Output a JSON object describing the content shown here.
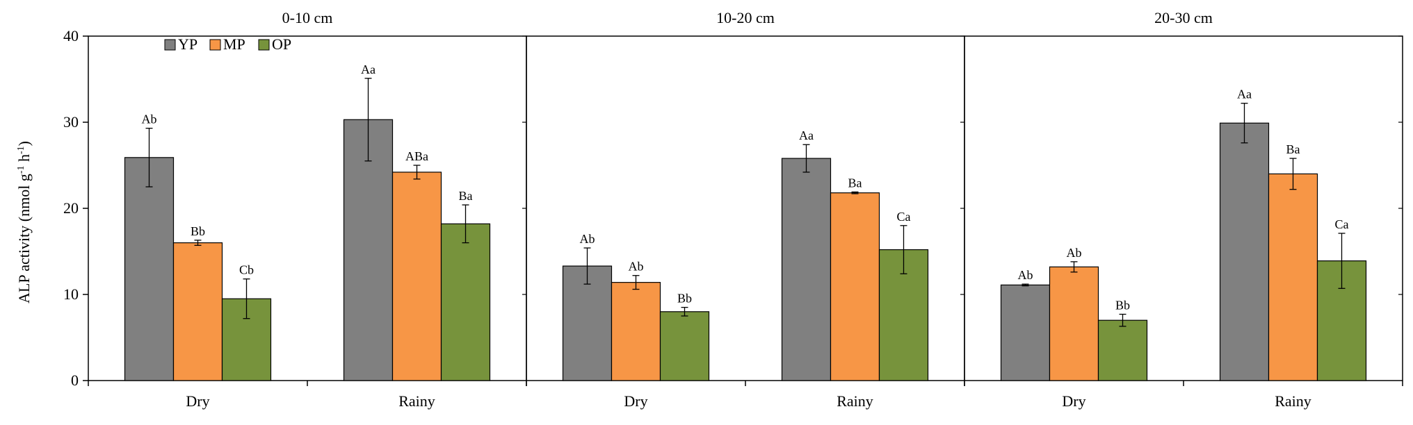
{
  "chart_data": {
    "type": "bar",
    "ylabel": "ALP activity (nmol g",
    "ylabel_sup1": "-1",
    "ylabel_mid": " h",
    "ylabel_sup2": "-1",
    "ylabel_end": ")",
    "ylim": [
      0,
      40
    ],
    "yticks": [
      "0",
      "10",
      "20",
      "30",
      "40"
    ],
    "ytick_values": [
      0,
      10,
      20,
      30,
      40
    ],
    "legend": [
      {
        "name": "YP",
        "color": "#808080"
      },
      {
        "name": "MP",
        "color": "#F79646"
      },
      {
        "name": "OP",
        "color": "#77933C"
      }
    ],
    "panels": [
      {
        "title": "0-10 cm",
        "categories": [
          "Dry",
          "Rainy"
        ],
        "series": [
          {
            "name": "YP",
            "values": [
              25.9,
              30.3
            ],
            "errors": [
              3.4,
              4.8
            ],
            "labels": [
              "Ab",
              "Aa"
            ]
          },
          {
            "name": "MP",
            "values": [
              16.0,
              24.2
            ],
            "errors": [
              0.3,
              0.8
            ],
            "labels": [
              "Bb",
              "ABa"
            ]
          },
          {
            "name": "OP",
            "values": [
              9.5,
              18.2
            ],
            "errors": [
              2.3,
              2.2
            ],
            "labels": [
              "Cb",
              "Ba"
            ]
          }
        ]
      },
      {
        "title": "10-20 cm",
        "categories": [
          "Dry",
          "Rainy"
        ],
        "series": [
          {
            "name": "YP",
            "values": [
              13.3,
              25.8
            ],
            "errors": [
              2.1,
              1.6
            ],
            "labels": [
              "Ab",
              "Aa"
            ]
          },
          {
            "name": "MP",
            "values": [
              11.4,
              21.8
            ],
            "errors": [
              0.8,
              0.1
            ],
            "labels": [
              "Ab",
              "Ba"
            ]
          },
          {
            "name": "OP",
            "values": [
              8.0,
              15.2
            ],
            "errors": [
              0.5,
              2.8
            ],
            "labels": [
              "Bb",
              "Ca"
            ]
          }
        ]
      },
      {
        "title": "20-30 cm",
        "categories": [
          "Dry",
          "Rainy"
        ],
        "series": [
          {
            "name": "YP",
            "values": [
              11.1,
              29.9
            ],
            "errors": [
              0.1,
              2.3
            ],
            "labels": [
              "Ab",
              "Aa"
            ]
          },
          {
            "name": "MP",
            "values": [
              13.2,
              24.0
            ],
            "errors": [
              0.6,
              1.8
            ],
            "labels": [
              "Ab",
              "Ba"
            ]
          },
          {
            "name": "OP",
            "values": [
              7.0,
              13.9
            ],
            "errors": [
              0.7,
              3.2
            ],
            "labels": [
              "Bb",
              "Ca"
            ]
          }
        ]
      }
    ]
  }
}
